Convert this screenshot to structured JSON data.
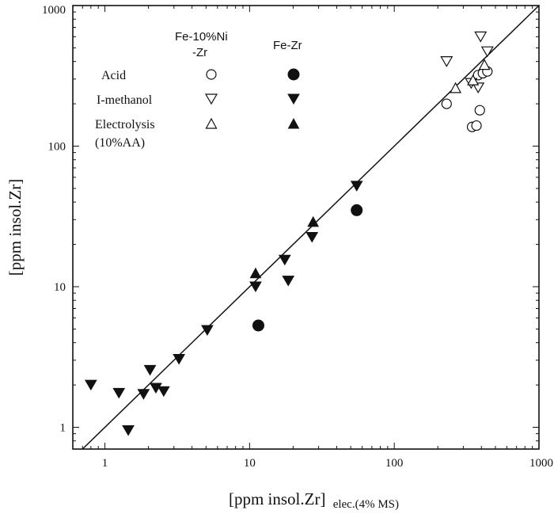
{
  "chart_data": {
    "type": "scatter",
    "x_scale": "log",
    "y_scale": "log",
    "xlim": [
      0.6,
      1000
    ],
    "ylim": [
      0.7,
      1000
    ],
    "x_ticks": [
      1,
      10,
      100,
      1000
    ],
    "y_ticks": [
      1,
      10,
      100,
      1000
    ],
    "x_tick_labels": [
      "1",
      "10",
      "100",
      "1000"
    ],
    "y_tick_labels": [
      "1",
      "10",
      "100",
      "1000"
    ],
    "xlabel": "[ppm insol.Zr]",
    "xlabel_sub": "elec.(4% MS)",
    "ylabel": "[ppm insol.Zr]",
    "reference_line": {
      "name": "y = x",
      "x": [
        0.6,
        1000
      ],
      "y": [
        0.6,
        1000
      ]
    },
    "legend": {
      "position": "top-left",
      "col_headers": [
        "Fe-10%Ni",
        "-Zr",
        "Fe-Zr"
      ],
      "rows": [
        {
          "label": "Acid",
          "marker": "circle"
        },
        {
          "label": "I-methanol",
          "marker": "triangle-down"
        },
        {
          "label": "Electrolysis",
          "label2": "(10%AA)",
          "marker": "triangle-up"
        }
      ]
    },
    "series": [
      {
        "name": "Fe-10%Ni-Zr Acid",
        "marker": "circle",
        "filled": false,
        "points": [
          [
            230,
            200
          ],
          [
            345,
            137
          ],
          [
            370,
            140
          ],
          [
            390,
            180
          ],
          [
            380,
            320
          ],
          [
            410,
            330
          ],
          [
            440,
            340
          ]
        ]
      },
      {
        "name": "Fe-10%Ni-Zr I-methanol",
        "marker": "triangle-down",
        "filled": false,
        "points": [
          [
            230,
            400
          ],
          [
            340,
            280
          ],
          [
            380,
            260
          ],
          [
            395,
            600
          ],
          [
            440,
            470
          ]
        ]
      },
      {
        "name": "Fe-10%Ni-Zr Electrolysis (10%AA)",
        "marker": "triangle-up",
        "filled": false,
        "points": [
          [
            265,
            260
          ],
          [
            350,
            295
          ],
          [
            420,
            380
          ]
        ]
      },
      {
        "name": "Fe-Zr Acid",
        "marker": "circle",
        "filled": true,
        "points": [
          [
            11.5,
            5.3
          ],
          [
            55,
            35
          ]
        ]
      },
      {
        "name": "Fe-Zr I-methanol",
        "marker": "triangle-down",
        "filled": true,
        "points": [
          [
            0.8,
            2.0
          ],
          [
            1.25,
            1.75
          ],
          [
            1.45,
            0.95
          ],
          [
            1.85,
            1.72
          ],
          [
            2.05,
            2.55
          ],
          [
            2.25,
            1.9
          ],
          [
            2.55,
            1.8
          ],
          [
            3.25,
            3.05
          ],
          [
            5.1,
            4.9
          ],
          [
            11,
            10
          ],
          [
            17.5,
            15.5
          ],
          [
            18.5,
            11
          ],
          [
            27,
            22.5
          ],
          [
            55,
            52
          ]
        ]
      },
      {
        "name": "Fe-Zr Electrolysis (10%AA)",
        "marker": "triangle-up",
        "filled": true,
        "points": [
          [
            11,
            12.5
          ],
          [
            27.5,
            29
          ]
        ]
      }
    ]
  }
}
